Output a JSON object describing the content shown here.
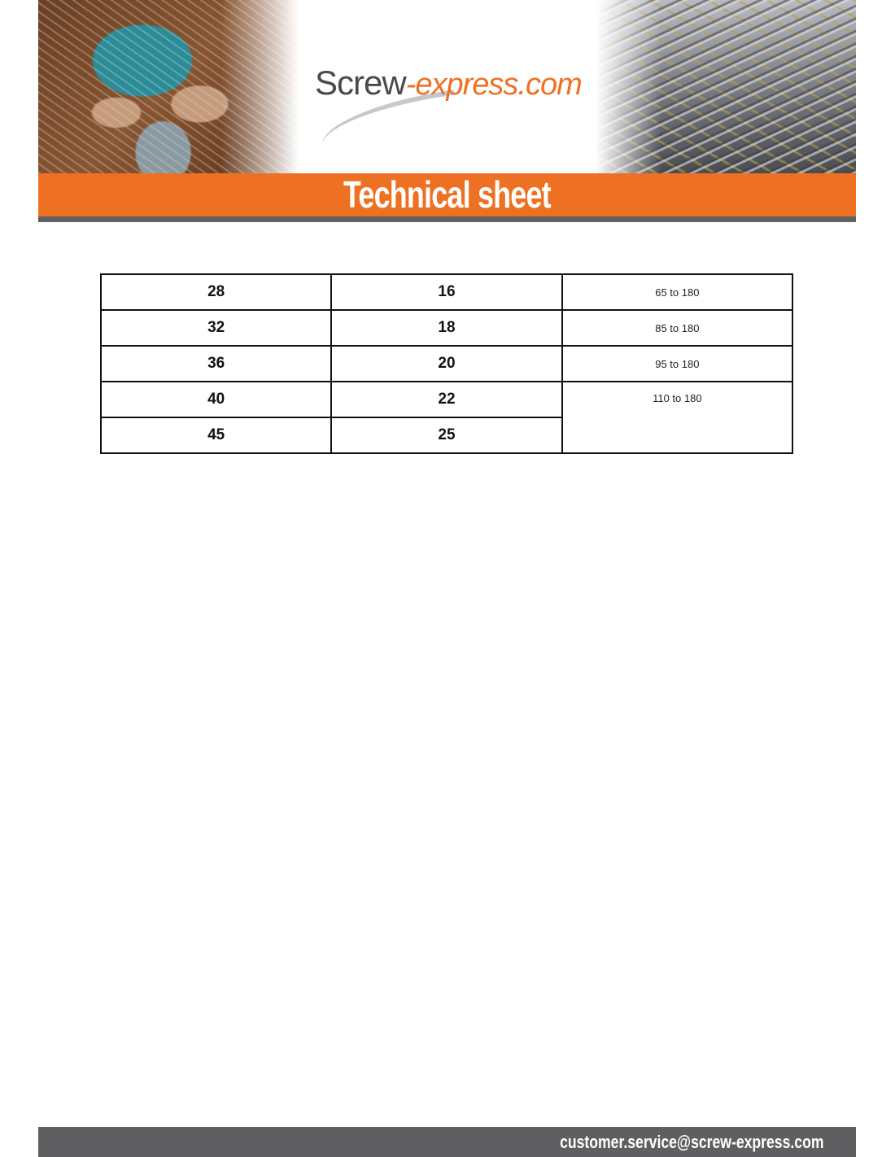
{
  "header": {
    "logo_part1": "Screw",
    "logo_part2": "-express.com",
    "title": "Technical sheet"
  },
  "table": {
    "rows": [
      [
        "28",
        "16",
        "65 to 180"
      ],
      [
        "32",
        "18",
        "85 to 180"
      ],
      [
        "36",
        "20",
        "95 to 180"
      ],
      [
        "40",
        "22",
        "110 to 180"
      ],
      [
        "45",
        "25"
      ]
    ]
  },
  "footer": {
    "email": "customer.service@screw-express.com"
  },
  "colors": {
    "accent": "#ee7123",
    "bar": "#5f5f61"
  }
}
